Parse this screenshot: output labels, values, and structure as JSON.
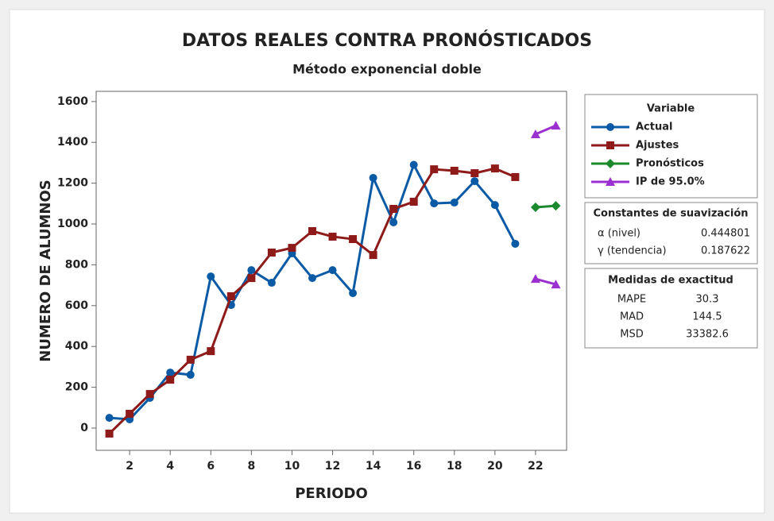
{
  "chart_data": {
    "type": "line",
    "title": "DATOS REALES CONTRA PRONÓSTICADOS",
    "subtitle": "Método exponencial doble",
    "x_label": "PERIODO",
    "y_label": "NUMERO DE ALUMNOS",
    "x": [
      1,
      2,
      3,
      4,
      5,
      6,
      7,
      8,
      9,
      10,
      11,
      12,
      13,
      14,
      15,
      16,
      17,
      18,
      19,
      20,
      21,
      22,
      23
    ],
    "xlim": [
      0.35,
      23.53
    ],
    "xticks": [
      2,
      4,
      6,
      8,
      10,
      12,
      14,
      16,
      18,
      20,
      22
    ],
    "ylim": [
      -109,
      1650
    ],
    "yticks": [
      0,
      200,
      400,
      600,
      800,
      1000,
      1200,
      1400,
      1600
    ],
    "grid": false,
    "legend_title": "Variable",
    "series": [
      {
        "name": "Actual",
        "color": "#0b5aa6",
        "marker": "circle",
        "values": [
          50,
          43,
          148,
          272,
          261,
          743,
          603,
          774,
          712,
          856,
          735,
          774,
          661,
          1226,
          1008,
          1290,
          1101,
          1105,
          1210,
          1093,
          903,
          null,
          null
        ]
      },
      {
        "name": "Ajustes",
        "color": "#8e1a1a",
        "marker": "square",
        "values": [
          -27,
          70,
          167,
          237,
          335,
          377,
          646,
          735,
          860,
          883,
          965,
          938,
          926,
          848,
          1074,
          1109,
          1268,
          1261,
          1249,
          1272,
          1230,
          null,
          null
        ]
      },
      {
        "name": "Pronósticos",
        "color": "#1b8a2e",
        "marker": "diamond",
        "values": [
          null,
          null,
          null,
          null,
          null,
          null,
          null,
          null,
          null,
          null,
          null,
          null,
          null,
          null,
          null,
          null,
          null,
          null,
          null,
          null,
          null,
          1082,
          1089
        ]
      },
      {
        "name": "IP de 95.0%",
        "color": "#9b30d0",
        "marker": "triangle",
        "values": [
          null,
          null,
          null,
          null,
          null,
          null,
          null,
          null,
          null,
          null,
          null,
          null,
          null,
          null,
          null,
          null,
          null,
          null,
          null,
          null,
          null,
          1440,
          1482
        ],
        "lower": [
          null,
          null,
          null,
          null,
          null,
          null,
          null,
          null,
          null,
          null,
          null,
          null,
          null,
          null,
          null,
          null,
          null,
          null,
          null,
          null,
          null,
          731,
          704
        ]
      }
    ],
    "smoothing": {
      "title": "Constantes de suavización",
      "rows": [
        {
          "label": "α (nivel)",
          "value": 0.444801
        },
        {
          "label": "γ (tendencia)",
          "value": 0.187622
        }
      ]
    },
    "accuracy": {
      "title": "Medidas de exactitud",
      "rows": [
        {
          "label": "MAPE",
          "value": 30.3
        },
        {
          "label": "MAD",
          "value": 144.5
        },
        {
          "label": "MSD",
          "value": 33382.6
        }
      ]
    }
  }
}
